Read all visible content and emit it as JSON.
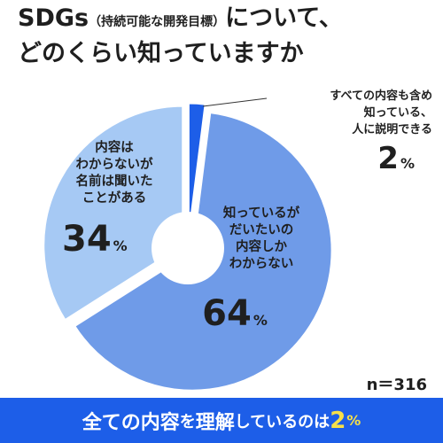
{
  "title": {
    "lead": "SDGs",
    "paren": "（持続可能な開発目標）",
    "tail": "について、",
    "line2": "どのくらい知っていますか"
  },
  "chart_data": {
    "type": "pie",
    "style": "donut",
    "title": "SDGs（持続可能な開発目標）について、どのくらい知っていますか",
    "slices": [
      {
        "label": "すべての内容も含め知っている、人に説明できる",
        "label_lines": [
          "すべての内容も含め",
          "知っている、",
          "人に説明できる"
        ],
        "value": 2,
        "display": "2",
        "color": "#1d5ee8"
      },
      {
        "label": "知っているがだいたいの内容しかわからない",
        "label_lines": [
          "知っているが",
          "だいたいの",
          "内容しか",
          "わからない"
        ],
        "value": 64,
        "display": "64",
        "color": "#6f9be8"
      },
      {
        "label": "内容はわからないが名前は聞いたことがある",
        "label_lines": [
          "内容は",
          "わからないが",
          "名前は聞いた",
          "ことがある"
        ],
        "value": 34,
        "display": "34",
        "color": "#a6c9f4"
      }
    ],
    "unit": "%"
  },
  "n_label": "n＝316",
  "banner": {
    "pre": "全ての内容",
    "particle1": "を",
    "mid": "理解",
    "post": "しているのは",
    "value": "2",
    "unit": "%"
  }
}
